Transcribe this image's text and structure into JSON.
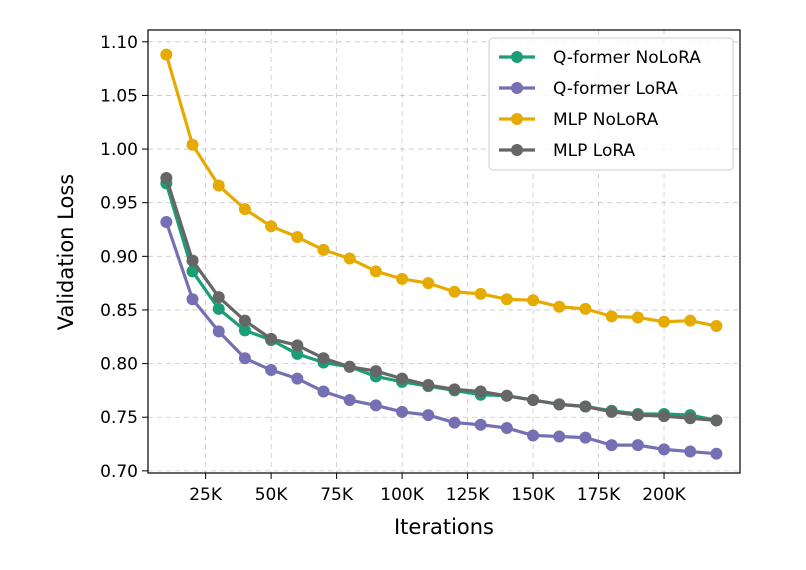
{
  "chart_data": {
    "type": "line",
    "title": "",
    "xlabel": "Iterations",
    "ylabel": "Validation Loss",
    "xlim": [
      3000,
      229000
    ],
    "ylim": [
      0.698,
      1.111
    ],
    "grid": true,
    "legend_position": "top-right",
    "x_ticks": [
      {
        "value": 25000,
        "label": "25K"
      },
      {
        "value": 50000,
        "label": "50K"
      },
      {
        "value": 75000,
        "label": "75K"
      },
      {
        "value": 100000,
        "label": "100K"
      },
      {
        "value": 125000,
        "label": "125K"
      },
      {
        "value": 150000,
        "label": "150K"
      },
      {
        "value": 175000,
        "label": "175K"
      },
      {
        "value": 200000,
        "label": "200K"
      }
    ],
    "y_ticks": [
      {
        "value": 0.7,
        "label": "0.70"
      },
      {
        "value": 0.75,
        "label": "0.75"
      },
      {
        "value": 0.8,
        "label": "0.80"
      },
      {
        "value": 0.85,
        "label": "0.85"
      },
      {
        "value": 0.9,
        "label": "0.90"
      },
      {
        "value": 0.95,
        "label": "0.95"
      },
      {
        "value": 1.0,
        "label": "1.00"
      },
      {
        "value": 1.05,
        "label": "1.05"
      },
      {
        "value": 1.1,
        "label": "1.10"
      }
    ],
    "x": [
      10000,
      20000,
      30000,
      40000,
      50000,
      60000,
      70000,
      80000,
      90000,
      100000,
      110000,
      120000,
      130000,
      140000,
      150000,
      160000,
      170000,
      180000,
      190000,
      200000,
      210000,
      220000
    ],
    "series": [
      {
        "name": "Q-former NoLoRA",
        "color": "#1b9e77",
        "values": [
          0.968,
          0.886,
          0.851,
          0.831,
          0.822,
          0.809,
          0.801,
          0.797,
          0.788,
          0.783,
          0.779,
          0.775,
          0.771,
          0.77,
          0.766,
          0.762,
          0.76,
          0.756,
          0.753,
          0.753,
          0.752,
          0.747
        ]
      },
      {
        "name": "Q-former LoRA",
        "color": "#7570b3",
        "values": [
          0.932,
          0.86,
          0.83,
          0.805,
          0.794,
          0.786,
          0.774,
          0.766,
          0.761,
          0.755,
          0.752,
          0.745,
          0.743,
          0.74,
          0.733,
          0.732,
          0.731,
          0.724,
          0.724,
          0.72,
          0.718,
          0.716
        ]
      },
      {
        "name": "MLP NoLoRA",
        "color": "#e6ab02",
        "values": [
          1.088,
          1.004,
          0.966,
          0.944,
          0.928,
          0.918,
          0.906,
          0.898,
          0.886,
          0.879,
          0.875,
          0.867,
          0.865,
          0.86,
          0.859,
          0.853,
          0.851,
          0.844,
          0.843,
          0.839,
          0.84,
          0.835
        ]
      },
      {
        "name": "MLP LoRA",
        "color": "#666666",
        "values": [
          0.973,
          0.896,
          0.862,
          0.84,
          0.823,
          0.817,
          0.805,
          0.797,
          0.793,
          0.786,
          0.78,
          0.776,
          0.774,
          0.77,
          0.766,
          0.762,
          0.76,
          0.755,
          0.752,
          0.751,
          0.749,
          0.747
        ]
      }
    ]
  }
}
